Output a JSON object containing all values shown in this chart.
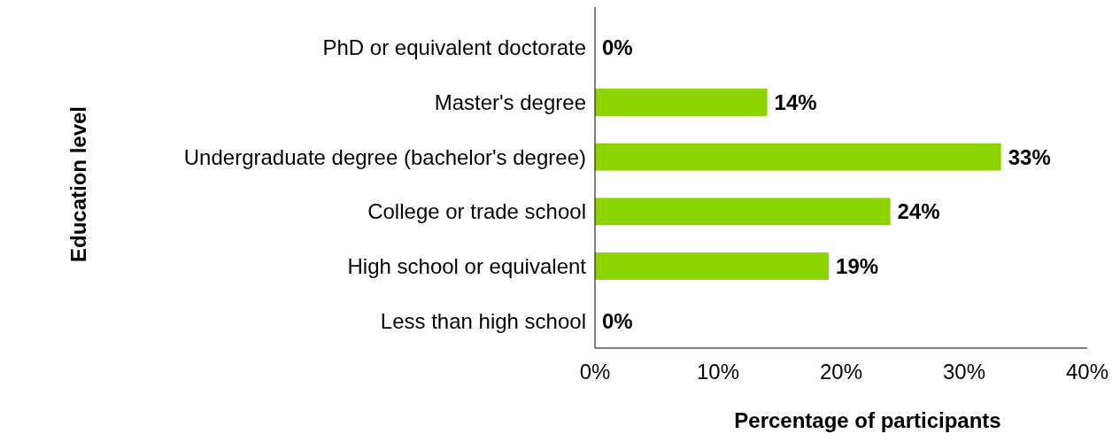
{
  "chart_data": {
    "type": "bar",
    "orientation": "horizontal",
    "xlabel": "Percentage of participants",
    "ylabel": "Education level",
    "categories": [
      "PhD or equivalent doctorate",
      "Master's degree",
      "Undergraduate degree (bachelor's degree)",
      "College or trade school",
      "High school or equivalent",
      "Less than high school"
    ],
    "values": [
      0,
      14,
      33,
      24,
      19,
      0
    ],
    "value_labels": [
      "0%",
      "14%",
      "33%",
      "24%",
      "19%",
      "0%"
    ],
    "color": "#8cd400",
    "xlim": [
      0,
      40
    ],
    "xticks": [
      {
        "value": 0,
        "label": "0%"
      },
      {
        "value": 10,
        "label": "10%"
      },
      {
        "value": 20,
        "label": "20%"
      },
      {
        "value": 30,
        "label": "30%"
      },
      {
        "value": 40,
        "label": "40%"
      }
    ],
    "grid": false
  }
}
